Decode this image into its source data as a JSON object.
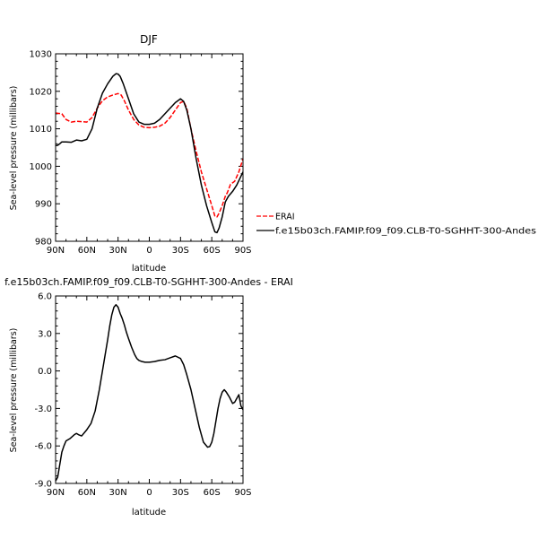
{
  "chart_data": [
    {
      "type": "line",
      "title": "DJF",
      "xlabel": "latitude",
      "ylabel": "Sea-level pressure (millibars)",
      "xlim": [
        90,
        -90
      ],
      "ylim": [
        980,
        1030
      ],
      "x_ticks": [
        90,
        60,
        30,
        0,
        -30,
        -60,
        -90
      ],
      "x_tick_labels": [
        "90N",
        "60N",
        "30N",
        "0",
        "30S",
        "60S",
        "90S"
      ],
      "y_ticks": [
        980,
        990,
        1000,
        1010,
        1020,
        1030
      ],
      "y_tick_labels": [
        "980",
        "990",
        "1000",
        "1010",
        "1020",
        "1030"
      ],
      "grid": false,
      "legend": "right",
      "series": [
        {
          "name": "ERAI",
          "color": "#ff0000",
          "dash": "dashed",
          "x": [
            90,
            87,
            84,
            80,
            75,
            70,
            65,
            60,
            55,
            50,
            45,
            40,
            35,
            30,
            27,
            24,
            20,
            15,
            10,
            5,
            0,
            -5,
            -10,
            -15,
            -20,
            -25,
            -30,
            -33,
            -36,
            -40,
            -45,
            -50,
            -55,
            -60,
            -63,
            -65,
            -67,
            -70,
            -73,
            -75,
            -78,
            -82,
            -86,
            -90
          ],
          "y": [
            1014.2,
            1014.1,
            1014,
            1012.5,
            1011.8,
            1012,
            1011.9,
            1011.8,
            1013,
            1015.5,
            1017.5,
            1018.5,
            1019,
            1019.4,
            1019,
            1017.5,
            1015,
            1012.5,
            1011,
            1010.4,
            1010.3,
            1010.4,
            1010.7,
            1011.5,
            1013,
            1015,
            1017,
            1017.3,
            1015.5,
            1010,
            1004,
            998.5,
            994,
            989.5,
            986.7,
            986.5,
            987.5,
            989.5,
            992,
            993,
            995.2,
            996,
            998.5,
            1002
          ]
        },
        {
          "name": "f.e15b03ch.FAMIP.f09_f09.CLB-T0-SGHHT-300-Andes",
          "color": "#000000",
          "dash": "solid",
          "x": [
            90,
            88,
            86,
            84,
            80,
            75,
            70,
            65,
            60,
            55,
            50,
            45,
            40,
            35,
            32,
            30,
            28,
            25,
            20,
            15,
            10,
            5,
            0,
            -5,
            -10,
            -15,
            -20,
            -25,
            -30,
            -33,
            -36,
            -40,
            -45,
            -50,
            -55,
            -60,
            -63,
            -65,
            -67,
            -70,
            -73,
            -76,
            -80,
            -84,
            -90
          ],
          "y": [
            1005.5,
            1005.6,
            1006,
            1006.5,
            1006.5,
            1006.4,
            1007,
            1006.8,
            1007.2,
            1010,
            1015.5,
            1019.5,
            1022,
            1024,
            1024.7,
            1024.6,
            1024,
            1022,
            1018,
            1014,
            1011.8,
            1011.2,
            1011.2,
            1011.5,
            1012.5,
            1014,
            1015.5,
            1017,
            1018,
            1017.3,
            1015,
            1010,
            1002,
            995,
            989.5,
            985,
            982.5,
            982.3,
            983.5,
            986.5,
            990.5,
            992,
            993.3,
            995,
            998.5
          ]
        }
      ]
    },
    {
      "type": "line",
      "title": "f.e15b03ch.FAMIP.f09_f09.CLB-T0-SGHHT-300-Andes - ERAI",
      "xlabel": "latitude",
      "ylabel": "Sea-level pressure (millibars)",
      "xlim": [
        90,
        -90
      ],
      "ylim": [
        -9,
        6
      ],
      "x_ticks": [
        90,
        60,
        30,
        0,
        -30,
        -60,
        -90
      ],
      "x_tick_labels": [
        "90N",
        "60N",
        "30N",
        "0",
        "30S",
        "60S",
        "90S"
      ],
      "y_ticks": [
        -9,
        -6,
        -3,
        0,
        3,
        6
      ],
      "y_tick_labels": [
        "-9.0",
        "-6.0",
        "-3.0",
        "0.0",
        "3.0",
        "6.0"
      ],
      "grid": false,
      "series": [
        {
          "color": "#000000",
          "x": [
            90,
            88,
            86,
            84,
            82,
            80,
            76,
            72,
            70,
            68,
            65,
            62,
            60,
            56,
            52,
            48,
            44,
            40,
            38,
            36,
            34,
            32,
            30,
            28,
            26,
            24,
            22,
            20,
            17,
            14,
            12,
            10,
            7,
            4,
            0,
            -5,
            -10,
            -15,
            -20,
            -25,
            -30,
            -33,
            -36,
            -40,
            -44,
            -48,
            -52,
            -56,
            -58,
            -60,
            -62,
            -64,
            -66,
            -68,
            -70,
            -72,
            -74,
            -77,
            -80,
            -82,
            -84,
            -86,
            -88,
            -90
          ],
          "y": [
            -8.8,
            -8.5,
            -7.5,
            -6.5,
            -6,
            -5.6,
            -5.4,
            -5.1,
            -5,
            -5.1,
            -5.2,
            -4.9,
            -4.7,
            -4.2,
            -3.2,
            -1.5,
            0.5,
            2.5,
            3.6,
            4.5,
            5.1,
            5.3,
            5.1,
            4.6,
            4.2,
            3.7,
            3.1,
            2.6,
            1.9,
            1.3,
            1,
            0.85,
            0.75,
            0.7,
            0.7,
            0.75,
            0.85,
            0.9,
            1.05,
            1.2,
            1,
            0.5,
            -0.3,
            -1.5,
            -3,
            -4.5,
            -5.7,
            -6.1,
            -6.05,
            -5.7,
            -5,
            -4,
            -3,
            -2.2,
            -1.7,
            -1.5,
            -1.7,
            -2.1,
            -2.6,
            -2.5,
            -2.2,
            -1.9,
            -2.8,
            -3.1
          ]
        }
      ]
    }
  ]
}
